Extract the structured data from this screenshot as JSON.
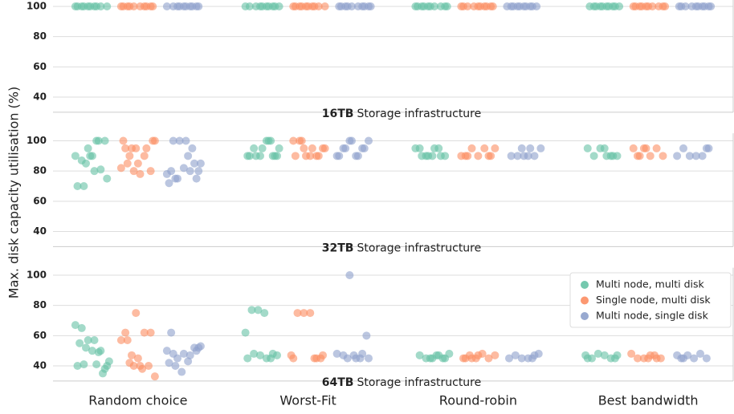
{
  "chart_data": {
    "type": "strip",
    "ylabel": "Max. disk capacity utilisation (%)",
    "categories": [
      "Random choice",
      "Worst-Fit",
      "Round-robin",
      "Best bandwidth"
    ],
    "series": [
      {
        "name": "Multi node, multi disk",
        "color": "#66c2a5"
      },
      {
        "name": "Single node, multi disk",
        "color": "#fc8d62"
      },
      {
        "name": "Multi node, single disk",
        "color": "#8da0cb"
      }
    ],
    "ylim": [
      30,
      105
    ],
    "yticks": [
      40,
      60,
      80,
      100
    ],
    "grid": true,
    "legend": "lower right",
    "panels": [
      {
        "title": "16TB",
        "subtitle": "Storage infrastructure",
        "values": [
          [
            [
              100,
              100,
              100,
              100,
              100,
              100,
              100,
              100,
              100,
              100
            ],
            [
              100,
              100,
              100,
              100,
              100,
              100,
              100,
              100,
              100,
              100
            ],
            [
              100,
              100,
              100,
              100,
              100,
              100,
              100,
              100,
              100,
              100
            ],
            [
              100,
              100,
              100,
              100,
              100,
              100,
              100,
              100,
              100,
              100
            ]
          ],
          [
            [
              100,
              100,
              100,
              100,
              100,
              100,
              100,
              100,
              100,
              100
            ],
            [
              100,
              100,
              100,
              100,
              100,
              100,
              100,
              100,
              100,
              100
            ],
            [
              100,
              100,
              100,
              100,
              100,
              100,
              100,
              100,
              100,
              100
            ],
            [
              100,
              100,
              100,
              100,
              100,
              100,
              100,
              100,
              100,
              100
            ]
          ],
          [
            [
              100,
              100,
              100,
              100,
              100,
              100,
              100,
              100,
              100,
              100
            ],
            [
              100,
              100,
              100,
              100,
              100,
              100,
              100,
              100,
              100,
              100
            ],
            [
              100,
              100,
              100,
              100,
              100,
              100,
              100,
              100,
              100,
              100
            ],
            [
              100,
              100,
              100,
              100,
              100,
              100,
              100,
              100,
              100,
              100
            ]
          ]
        ]
      },
      {
        "title": "32TB",
        "subtitle": "Storage infrastructure",
        "values": [
          [
            [
              85,
              90,
              100,
              100,
              90,
              87,
              95,
              80,
              81,
              75,
              70,
              70,
              90,
              100
            ],
            [
              100,
              90,
              90,
              95,
              90,
              100,
              90,
              95,
              90,
              90,
              95,
              100,
              90
            ],
            [
              95,
              90,
              90,
              95,
              90,
              95,
              90,
              90,
              95,
              90
            ],
            [
              95,
              90,
              90,
              95,
              90,
              95,
              90,
              90
            ]
          ],
          [
            [
              100,
              95,
              95,
              85,
              90,
              80,
              82,
              85,
              80,
              78,
              95,
              100,
              100,
              90,
              95
            ],
            [
              95,
              90,
              90,
              95,
              100,
              100,
              90,
              95,
              90,
              95,
              90,
              100
            ],
            [
              90,
              95,
              90,
              95,
              90,
              95,
              90,
              90,
              90
            ],
            [
              90,
              95,
              90,
              95,
              90,
              95,
              90,
              95
            ]
          ],
          [
            [
              90,
              85,
              85,
              80,
              75,
              82,
              80,
              75,
              78,
              100,
              100,
              100,
              95,
              80,
              72,
              75
            ],
            [
              90,
              95,
              100,
              90,
              95,
              100,
              90,
              95,
              100,
              90,
              95
            ],
            [
              95,
              90,
              90,
              95,
              90,
              90,
              90,
              95
            ],
            [
              95,
              90,
              95,
              90,
              90,
              90,
              95
            ]
          ]
        ]
      },
      {
        "title": "64TB",
        "subtitle": "Storage infrastructure",
        "values": [
          [
            [
              41,
              35,
              43,
              55,
              52,
              50,
              49,
              38,
              67,
              65,
              57,
              57,
              50,
              40,
              40,
              41
            ],
            [
              62,
              77,
              77,
              75,
              45,
              47,
              45,
              48,
              47,
              45,
              48
            ],
            [
              45,
              47,
              45,
              48,
              47,
              45,
              45,
              47,
              45
            ],
            [
              45,
              47,
              45,
              48,
              47,
              45,
              47,
              45
            ]
          ],
          [
            [
              42,
              75,
              38,
              40,
              33,
              62,
              47,
              45,
              62,
              62,
              57,
              57,
              40,
              40
            ],
            [
              45,
              45,
              47,
              75,
              75,
              75,
              45,
              47,
              45
            ],
            [
              45,
              47,
              45,
              48,
              45,
              47,
              45,
              45,
              47
            ],
            [
              45,
              47,
              45,
              48,
              45,
              45,
              47,
              45
            ]
          ],
          [
            [
              52,
              42,
              40,
              36,
              43,
              52,
              53,
              62,
              45,
              48,
              47,
              50,
              50,
              48
            ],
            [
              45,
              47,
              45,
              60,
              48,
              47,
              100,
              45,
              48,
              45
            ],
            [
              45,
              48,
              45,
              47,
              45,
              45,
              47
            ],
            [
              45,
              47,
              45,
              48,
              45,
              47,
              45
            ]
          ]
        ]
      }
    ]
  }
}
